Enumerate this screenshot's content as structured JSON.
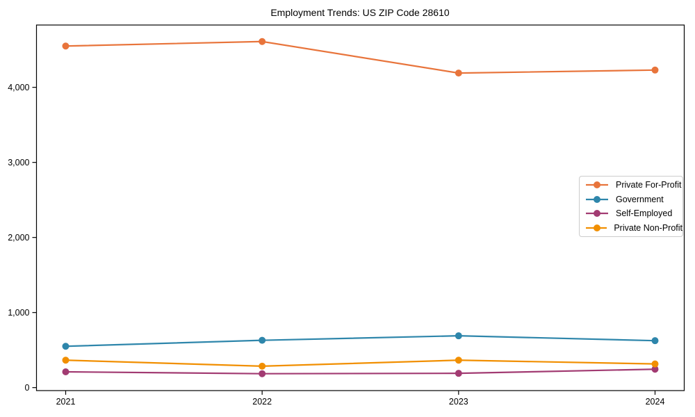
{
  "figure": {
    "background": "#ffffff",
    "axis_color": "#000000"
  },
  "chart_data": {
    "type": "line",
    "title": "Employment Trends: US ZIP Code 28610",
    "x": [
      2021,
      2022,
      2023,
      2024
    ],
    "x_tick_labels": [
      "2021",
      "2022",
      "2023",
      "2024"
    ],
    "y_ticks": [
      0,
      1000,
      2000,
      3000,
      4000
    ],
    "y_tick_labels": [
      "0",
      "1,000",
      "2,000",
      "3,000",
      "4,000"
    ],
    "ylim": [
      -40,
      4830
    ],
    "grid": false,
    "legend_position": "center right",
    "series": [
      {
        "name": "Private For-Profit",
        "color": "#E8743B",
        "values": [
          4550,
          4610,
          4190,
          4230
        ]
      },
      {
        "name": "Government",
        "color": "#2E86AB",
        "values": [
          550,
          630,
          690,
          625
        ]
      },
      {
        "name": "Self-Employed",
        "color": "#A23B72",
        "values": [
          210,
          185,
          190,
          245
        ]
      },
      {
        "name": "Private Non-Profit",
        "color": "#F18F01",
        "values": [
          365,
          285,
          365,
          315
        ]
      }
    ]
  }
}
